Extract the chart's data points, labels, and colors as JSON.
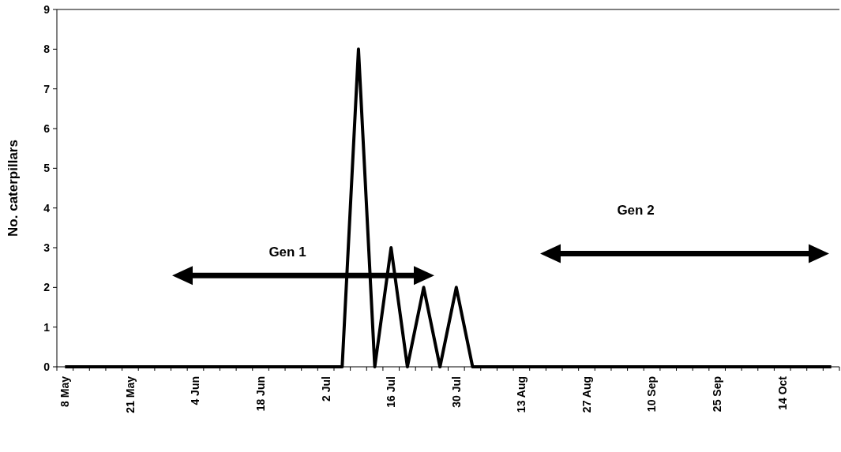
{
  "chart_data": {
    "type": "line",
    "ylabel": "No. caterpillars",
    "categories": [
      "8 May",
      null,
      null,
      null,
      "21 May",
      null,
      null,
      null,
      "4 Jun",
      null,
      null,
      null,
      "18 Jun",
      null,
      null,
      null,
      "2 Jul",
      null,
      null,
      null,
      "16 Jul",
      null,
      null,
      null,
      "30 Jul",
      null,
      null,
      null,
      "13 Aug",
      null,
      null,
      null,
      "27 Aug",
      null,
      null,
      null,
      "10 Sep",
      null,
      null,
      null,
      "25 Sep",
      null,
      null,
      null,
      "14 Oct",
      null,
      null,
      null
    ],
    "series": [
      {
        "color": "#000000",
        "values": [
          0,
          0,
          0,
          0,
          0,
          0,
          0,
          0,
          0,
          0,
          0,
          0,
          0,
          0,
          0,
          0,
          0,
          0,
          8,
          0,
          3,
          0,
          2,
          0,
          2,
          0,
          0,
          0,
          0,
          0,
          0,
          0,
          0,
          0,
          0,
          0,
          0,
          0,
          0,
          0,
          0,
          0,
          0,
          0,
          0,
          0,
          0,
          0
        ]
      }
    ],
    "ylim": [
      0,
      9
    ],
    "yticks": [
      0,
      1,
      2,
      3,
      4,
      5,
      6,
      7,
      8,
      9
    ],
    "grid": false,
    "marker": "none",
    "line_style": "solid",
    "annotations": [
      "Gen 1",
      "Gen 2"
    ]
  }
}
